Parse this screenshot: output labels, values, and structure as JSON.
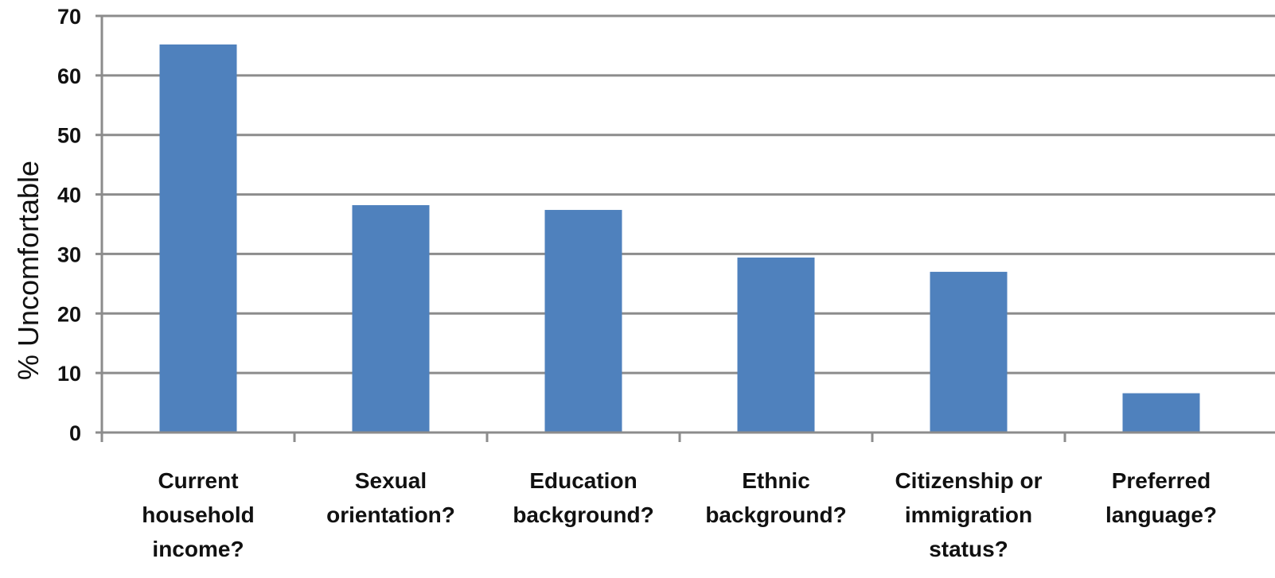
{
  "chart_data": {
    "type": "bar",
    "title": "",
    "xlabel": "",
    "ylabel": "% Uncomfortable",
    "ylim": [
      0,
      70
    ],
    "yticks": [
      0,
      10,
      20,
      30,
      40,
      50,
      60,
      70
    ],
    "grid": true,
    "legend": "none",
    "bar_color": "#4f81bd",
    "grid_color": "#8c8c8c",
    "categories": [
      "Current household income?",
      "Sexual orientation?",
      "Education background?",
      "Ethnic background?",
      "Citizenship or immigration status?",
      "Preferred language?"
    ],
    "category_label_lines": [
      [
        "Current",
        "household",
        "income?"
      ],
      [
        "Sexual",
        "orientation?"
      ],
      [
        "Education",
        "background?"
      ],
      [
        "Ethnic",
        "background?"
      ],
      [
        "Citizenship or",
        "immigration",
        "status?"
      ],
      [
        "Preferred",
        "language?"
      ]
    ],
    "values": [
      65.2,
      38.2,
      37.4,
      29.4,
      27.0,
      6.6
    ]
  }
}
